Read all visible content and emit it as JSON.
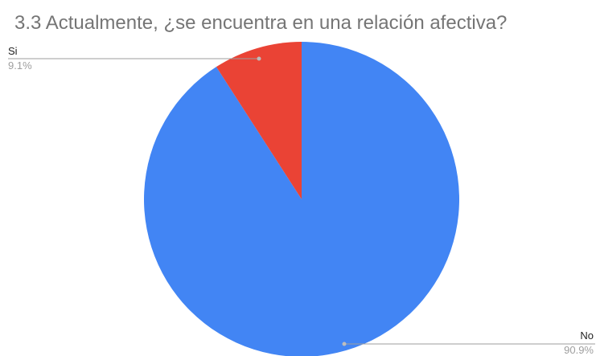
{
  "chart_data": {
    "type": "pie",
    "title": "3.3 Actualmente, ¿se encuentra en una relación afectiva?",
    "slices": [
      {
        "label": "No",
        "value": 90.9,
        "percent_label": "90.9%",
        "color": "#4285f4"
      },
      {
        "label": "Si",
        "value": 9.1,
        "percent_label": "9.1%",
        "color": "#ea4335"
      }
    ],
    "start_angle_deg": 0,
    "direction": "clockwise",
    "legend": "none"
  }
}
